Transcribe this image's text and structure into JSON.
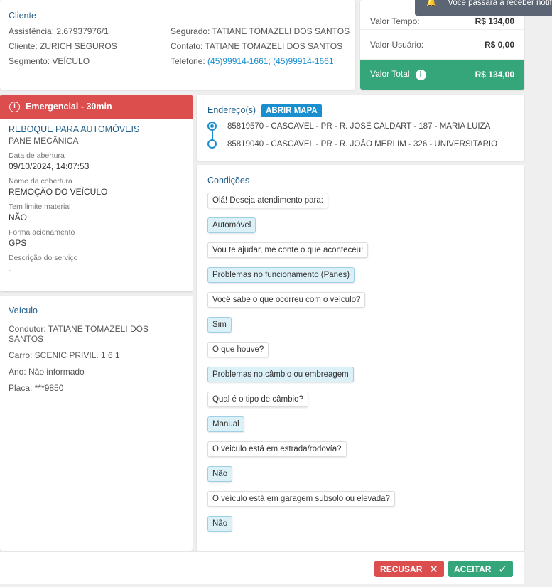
{
  "toast": {
    "text": "Você passará a receber notificações"
  },
  "cliente": {
    "title": "Cliente",
    "assistencia": "Assistência: 2.67937976/1",
    "cliente": "Cliente: ZURICH SEGUROS",
    "segmento": "Segmento: VEÍCULO",
    "segurado": "Segurado: TATIANE TOMAZELI DOS SANTOS",
    "contato": "Contato: TATIANE TOMAZELI DOS SANTOS",
    "telefone_label": "Telefone: ",
    "telefone": "(45)99914-1661; (45)99914-1661"
  },
  "valores": {
    "tempo_label": "Valor Tempo:",
    "tempo": "R$ 134,00",
    "usuario_label": "Valor Usuário:",
    "usuario": "R$ 0,00",
    "total_label": "Valor Total",
    "total": "R$ 134,00"
  },
  "servico": {
    "badge": "Emergencial - 30min",
    "tipo": "REBOQUE PARA AUTOMÓVEIS",
    "subtipo": "PANE MECÂNICA",
    "data_label": "Data de abertura",
    "data": "09/10/2024, 14:07:53",
    "cobertura_label": "Nome da cobertura",
    "cobertura": "REMOÇÃO DO VEÍCULO",
    "limite_label": "Tem limite material",
    "limite": "NÃO",
    "forma_label": "Forma acionamento",
    "forma": "GPS",
    "descricao_label": "Descrição do serviço",
    "descricao": "."
  },
  "veiculo": {
    "title": "Veículo",
    "condutor": "Condutor: TATIANE TOMAZELI DOS SANTOS",
    "carro": "Carro: SCENIC PRIVIL. 1.6 1",
    "ano": "Ano: Não informado",
    "placa": "Placa: ***9850"
  },
  "enderecos": {
    "title": "Endereço(s)",
    "map_button": "ABRIR MAPA",
    "items": [
      "85819570 - CASCAVEL - PR - R. JOSÉ CALDART - 187 - MARIA LUIZA",
      "85819040 - CASCAVEL - PR - R. JOÃO MERLIM - 326 - UNIVERSITARIO"
    ]
  },
  "condicoes": {
    "title": "Condições",
    "messages": [
      {
        "type": "q",
        "text": "Olá! Deseja atendimento para:"
      },
      {
        "type": "a",
        "text": "Automóvel"
      },
      {
        "type": "q",
        "text": "Vou te ajudar, me conte o que aconteceu:"
      },
      {
        "type": "a",
        "text": "Problemas no funcionamento (Panes)"
      },
      {
        "type": "q",
        "text": "Você sabe o que ocorreu com o veículo?"
      },
      {
        "type": "a",
        "text": "Sim"
      },
      {
        "type": "q",
        "text": "O que houve?"
      },
      {
        "type": "a",
        "text": "Problemas no câmbio ou embreagem"
      },
      {
        "type": "q",
        "text": "Qual é o tipo de câmbio?"
      },
      {
        "type": "a",
        "text": "Manual"
      },
      {
        "type": "q",
        "text": "O veiculo está em estrada/rodovía?"
      },
      {
        "type": "a",
        "text": "Não"
      },
      {
        "type": "q",
        "text": "O veículo está em garagem subsolo ou elevada?"
      },
      {
        "type": "a",
        "text": "Não"
      }
    ]
  },
  "footer": {
    "recusar": "RECUSAR",
    "aceitar": "ACEITAR"
  },
  "colors": {
    "danger": "#dc4e4e",
    "success": "#35a57a",
    "primary": "#1a8fd0"
  }
}
